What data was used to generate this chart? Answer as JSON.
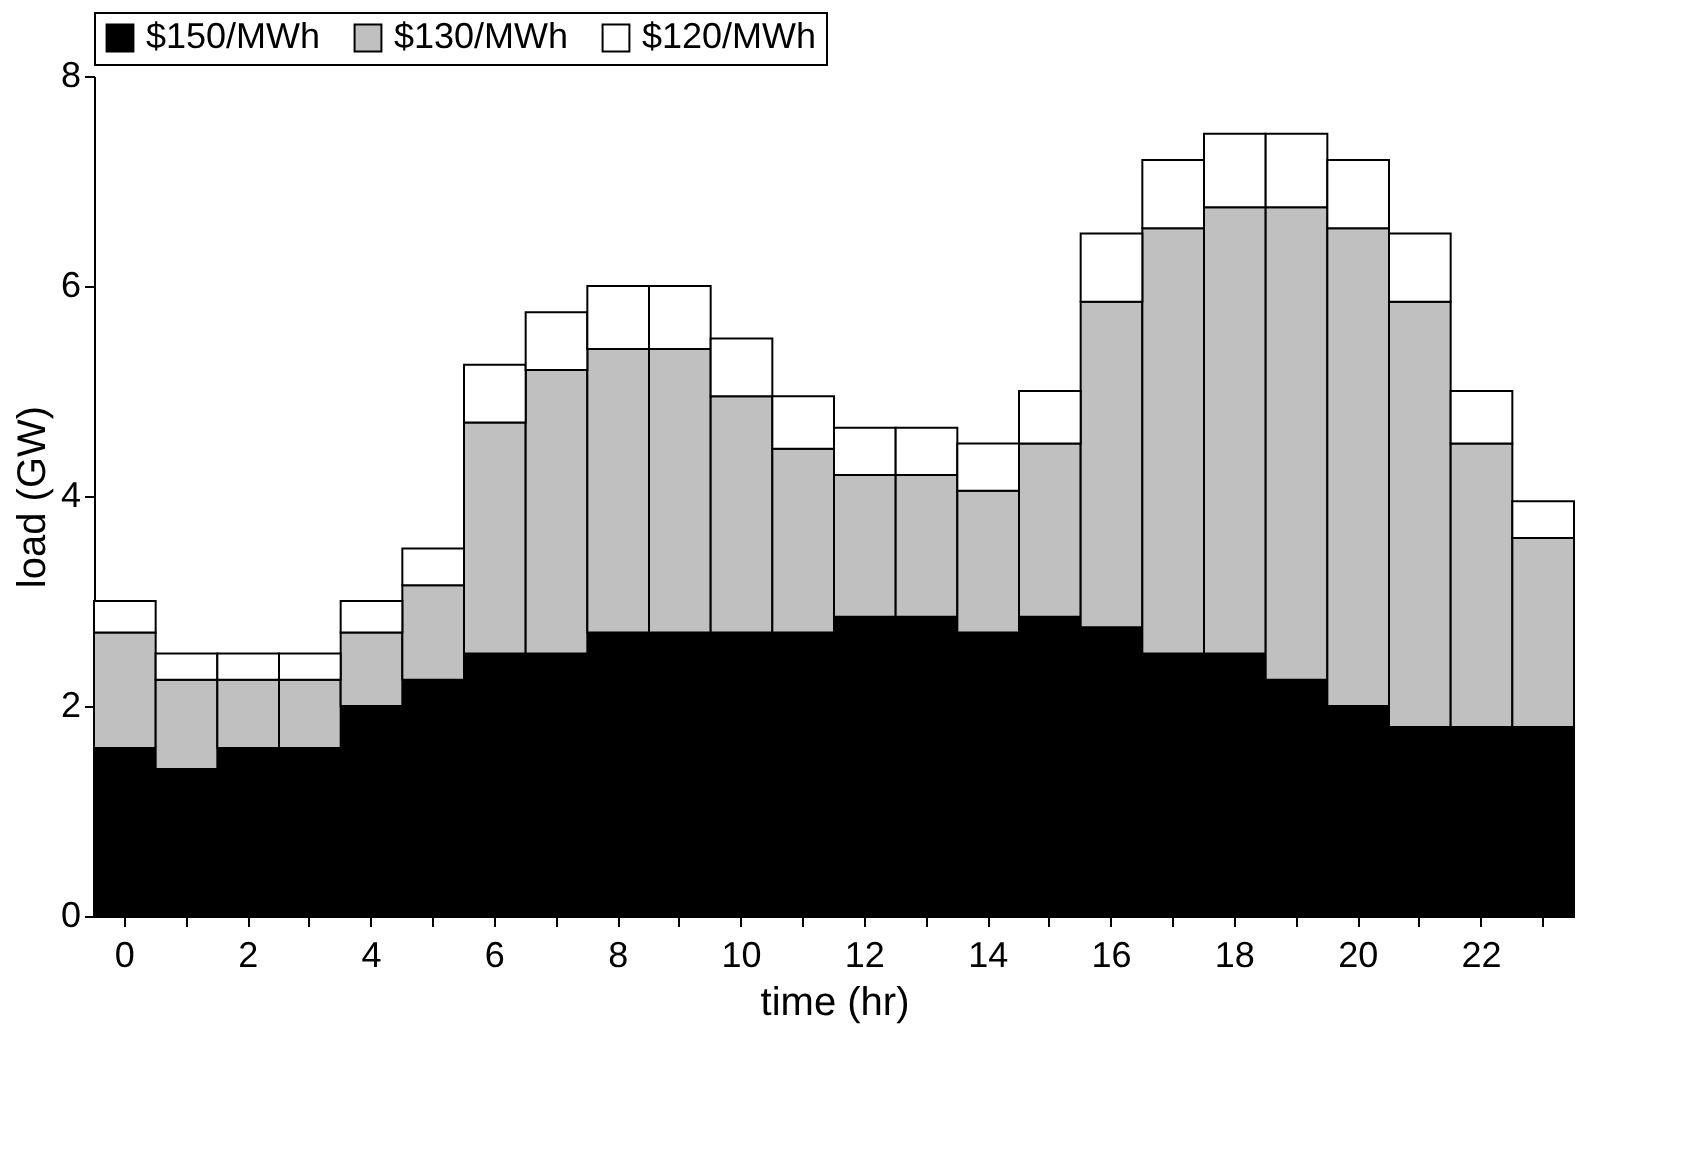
{
  "chart_data": {
    "type": "bar",
    "stacked": true,
    "xlabel": "time (hr)",
    "ylabel": "load (GW)",
    "categories": [
      "0",
      null,
      "2",
      null,
      "4",
      null,
      "6",
      null,
      "8",
      null,
      "10",
      null,
      "12",
      null,
      "14",
      null,
      "16",
      null,
      "18",
      null,
      "20",
      null,
      "22",
      null
    ],
    "ylim": [
      0,
      8
    ],
    "yticks": [
      0,
      2,
      4,
      6,
      8
    ],
    "legend": "top",
    "grid": false,
    "series": [
      {
        "name": "$150/MWh",
        "color": "#000000",
        "values": [
          1.6,
          1.4,
          1.6,
          1.6,
          2.0,
          2.25,
          2.5,
          2.5,
          2.7,
          2.7,
          2.7,
          2.7,
          2.85,
          2.85,
          2.7,
          2.85,
          2.75,
          2.5,
          2.5,
          2.25,
          2.0,
          1.8,
          1.8,
          1.8
        ]
      },
      {
        "name": "$130/MWh",
        "color": "#c0c0c0",
        "values": [
          1.1,
          0.85,
          0.65,
          0.65,
          0.7,
          0.9,
          2.2,
          2.7,
          2.7,
          2.7,
          2.25,
          1.75,
          1.35,
          1.35,
          1.35,
          1.65,
          3.1,
          4.05,
          4.25,
          4.5,
          4.55,
          4.05,
          2.7,
          1.8
        ]
      },
      {
        "name": "$120/MWh",
        "color": "#ffffff",
        "values": [
          0.3,
          0.25,
          0.25,
          0.25,
          0.3,
          0.35,
          0.55,
          0.55,
          0.6,
          0.6,
          0.55,
          0.5,
          0.45,
          0.45,
          0.45,
          0.5,
          0.65,
          0.65,
          0.7,
          0.7,
          0.65,
          0.65,
          0.5,
          0.35
        ]
      }
    ]
  }
}
